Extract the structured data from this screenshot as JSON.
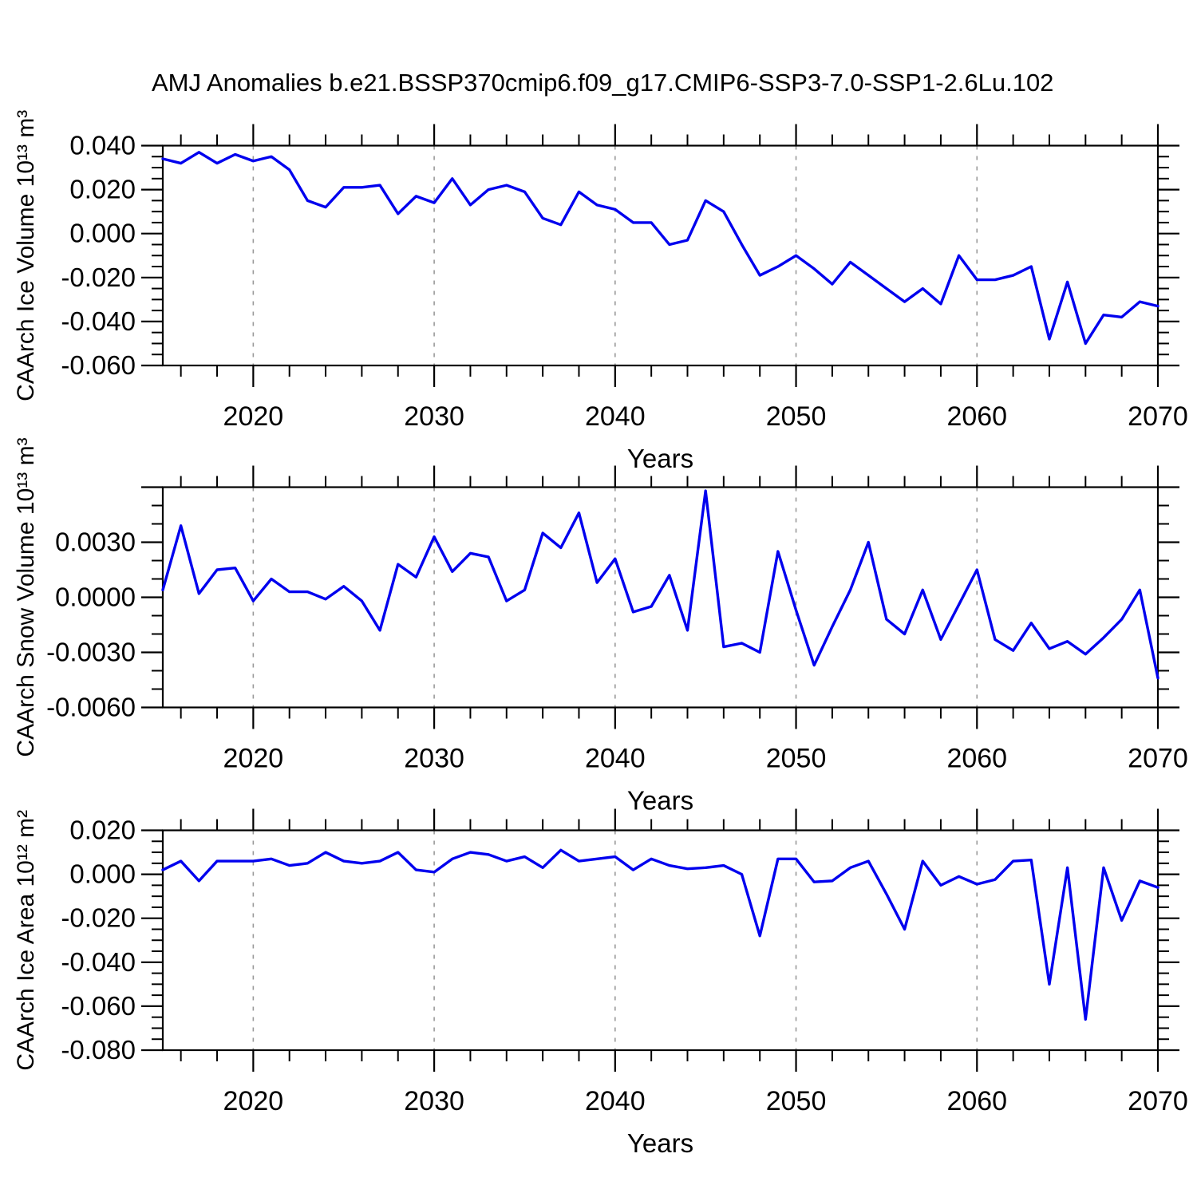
{
  "title": "AMJ Anomalies b.e21.BSSP370cmip6.f09_g17.CMIP6-SSP3-7.0-SSP1-2.6Lu.102",
  "colors": {
    "line": "#0000ee",
    "grid": "#999999",
    "axis": "#000000",
    "background": "#ffffff"
  },
  "chart_data": [
    {
      "name": "ice-volume",
      "type": "line",
      "ylabel": "CAArch Ice Volume 10¹³ m³",
      "xlabel": "Years",
      "legend": null,
      "grid": "vertical-dashed",
      "xlim": [
        2015,
        2070
      ],
      "ylim": [
        -0.06,
        0.04
      ],
      "x_start": 2015,
      "x_step": 1,
      "xtick_values": [
        2020,
        2030,
        2040,
        2050,
        2060,
        2070
      ],
      "xtick_labels": [
        "2020",
        "2030",
        "2040",
        "2050",
        "2060",
        "2070"
      ],
      "x_minor_step": 2,
      "grid_x": [
        2020,
        2030,
        2040,
        2050,
        2060
      ],
      "ytick_values": [
        0.04,
        0.02,
        0.0,
        -0.02,
        -0.04,
        -0.06
      ],
      "ytick_labels": [
        "0.040",
        "0.020",
        "0.000",
        "-0.020",
        "-0.040",
        "-0.060"
      ],
      "y_major_step": 0.02,
      "y_minor_step": 0.005,
      "values": [
        0.034,
        0.032,
        0.037,
        0.032,
        0.036,
        0.033,
        0.035,
        0.029,
        0.015,
        0.012,
        0.021,
        0.021,
        0.022,
        0.009,
        0.017,
        0.014,
        0.025,
        0.013,
        0.02,
        0.022,
        0.019,
        0.007,
        0.004,
        0.019,
        0.013,
        0.011,
        0.005,
        0.005,
        -0.005,
        -0.003,
        0.015,
        0.01,
        -0.005,
        -0.019,
        -0.015,
        -0.01,
        -0.016,
        -0.023,
        -0.013,
        -0.019,
        -0.025,
        -0.031,
        -0.025,
        -0.032,
        -0.01,
        -0.021,
        -0.021,
        -0.019,
        -0.015,
        -0.048,
        -0.022,
        -0.05,
        -0.037,
        -0.038,
        -0.031,
        -0.033
      ]
    },
    {
      "name": "snow-volume",
      "type": "line",
      "ylabel": "CAArch Snow Volume 10¹³ m³",
      "xlabel": "Years",
      "legend": null,
      "grid": "vertical-dashed",
      "xlim": [
        2015,
        2070
      ],
      "ylim": [
        -0.006,
        0.006
      ],
      "x_start": 2015,
      "x_step": 1,
      "xtick_values": [
        2020,
        2030,
        2040,
        2050,
        2060,
        2070
      ],
      "xtick_labels": [
        "2020",
        "2030",
        "2040",
        "2050",
        "2060",
        "2070"
      ],
      "x_minor_step": 2,
      "grid_x": [
        2020,
        2030,
        2040,
        2050,
        2060
      ],
      "ytick_values": [
        0.003,
        0.0,
        -0.003,
        -0.006
      ],
      "ytick_labels": [
        "0.0030",
        "0.0000",
        "-0.0030",
        "-0.0060"
      ],
      "y_major_step": 0.003,
      "y_minor_step": 0.001,
      "values": [
        0.0004,
        0.0039,
        0.0002,
        0.0015,
        0.0016,
        -0.0002,
        0.001,
        0.0003,
        0.0003,
        -0.0001,
        0.0006,
        -0.0002,
        -0.0018,
        0.0018,
        0.0011,
        0.0033,
        0.0014,
        0.0024,
        0.0022,
        -0.0002,
        0.0004,
        0.0035,
        0.0027,
        0.0046,
        0.0008,
        0.0021,
        -0.0008,
        -0.0005,
        0.0012,
        -0.0018,
        0.0058,
        -0.0027,
        -0.0025,
        -0.003,
        0.0025,
        -0.0007,
        -0.0037,
        -0.0016,
        0.0004,
        0.003,
        -0.0012,
        -0.002,
        0.0004,
        -0.0023,
        -0.0004,
        0.0015,
        -0.0023,
        -0.0029,
        -0.0014,
        -0.0028,
        -0.0024,
        -0.0031,
        -0.0022,
        -0.0012,
        0.0004,
        -0.0044
      ]
    },
    {
      "name": "ice-area",
      "type": "line",
      "ylabel": "CAArch Ice Area 10¹² m²",
      "xlabel": "Years",
      "legend": null,
      "grid": "vertical-dashed",
      "xlim": [
        2015,
        2070
      ],
      "ylim": [
        -0.08,
        0.02
      ],
      "x_start": 2015,
      "x_step": 1,
      "xtick_values": [
        2020,
        2030,
        2040,
        2050,
        2060,
        2070
      ],
      "xtick_labels": [
        "2020",
        "2030",
        "2040",
        "2050",
        "2060",
        "2070"
      ],
      "x_minor_step": 2,
      "grid_x": [
        2020,
        2030,
        2040,
        2050,
        2060
      ],
      "ytick_values": [
        0.02,
        0.0,
        -0.02,
        -0.04,
        -0.06,
        -0.08
      ],
      "ytick_labels": [
        "0.020",
        "0.000",
        "-0.020",
        "-0.040",
        "-0.060",
        "-0.080"
      ],
      "y_major_step": 0.02,
      "y_minor_step": 0.005,
      "values": [
        0.002,
        0.006,
        -0.003,
        0.006,
        0.006,
        0.006,
        0.007,
        0.004,
        0.005,
        0.01,
        0.006,
        0.005,
        0.006,
        0.01,
        0.002,
        0.001,
        0.007,
        0.01,
        0.009,
        0.006,
        0.008,
        0.003,
        0.011,
        0.006,
        0.007,
        0.008,
        0.002,
        0.007,
        0.004,
        0.0025,
        0.003,
        0.004,
        0.0,
        -0.028,
        0.007,
        0.007,
        -0.0035,
        -0.003,
        0.003,
        0.006,
        -0.009,
        -0.025,
        0.006,
        -0.005,
        -0.001,
        -0.0045,
        -0.0024,
        0.006,
        0.0065,
        -0.05,
        0.003,
        -0.066,
        0.003,
        -0.021,
        -0.003,
        -0.006
      ]
    }
  ]
}
